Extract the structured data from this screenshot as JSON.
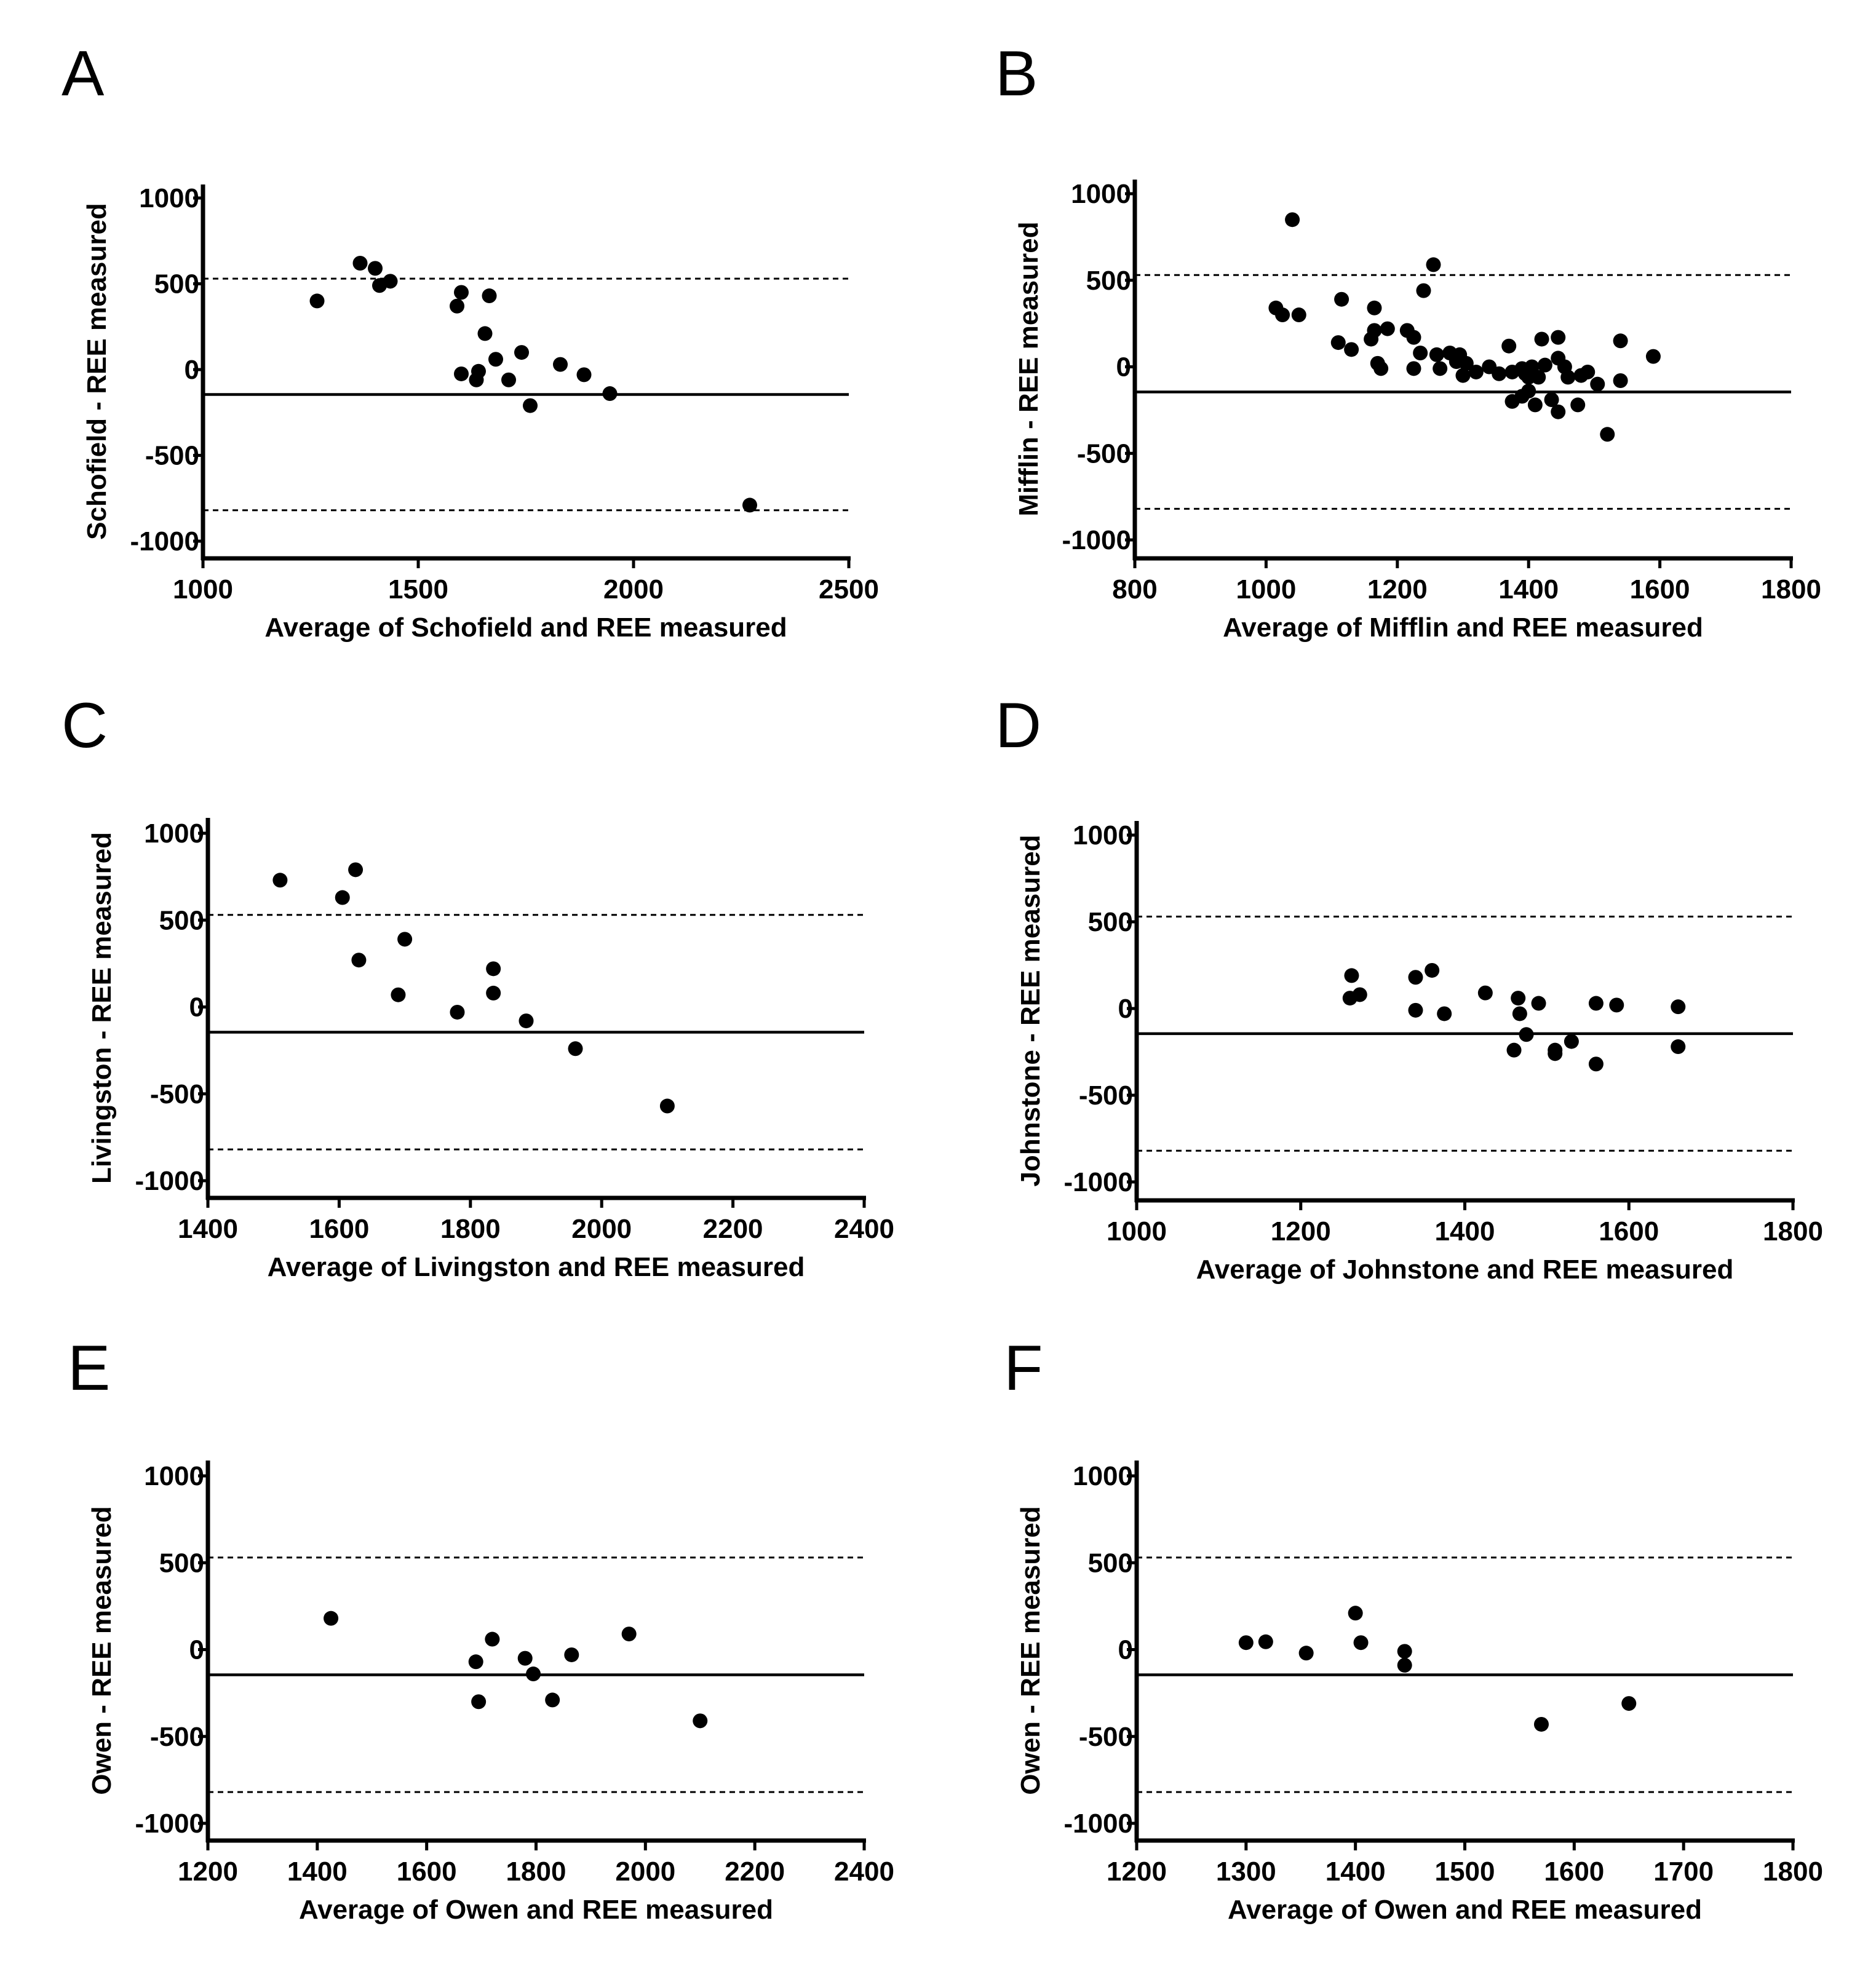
{
  "chart_data": [
    {
      "type": "scatter",
      "panel": "A",
      "xlabel": "Average of Schofield and REE measured",
      "ylabel": "Schofield - REE measured",
      "xlim": [
        1000,
        2500
      ],
      "ylim": [
        -1100,
        1100
      ],
      "xticks": [
        1000,
        1500,
        2000,
        2500
      ],
      "yticks": [
        1000,
        500,
        0,
        -500,
        -1000
      ],
      "mean_line": -145,
      "upper_loa": 530,
      "lower_loa": -820,
      "points": [
        [
          1265,
          400
        ],
        [
          1365,
          620
        ],
        [
          1400,
          590
        ],
        [
          1410,
          490
        ],
        [
          1435,
          515
        ],
        [
          1590,
          370
        ],
        [
          1600,
          450
        ],
        [
          1600,
          -25
        ],
        [
          1635,
          -60
        ],
        [
          1640,
          -10
        ],
        [
          1655,
          210
        ],
        [
          1665,
          430
        ],
        [
          1680,
          60
        ],
        [
          1710,
          -60
        ],
        [
          1740,
          100
        ],
        [
          1760,
          -210
        ],
        [
          1830,
          30
        ],
        [
          1885,
          -30
        ],
        [
          1945,
          -140
        ],
        [
          2270,
          -790
        ]
      ]
    },
    {
      "type": "scatter",
      "panel": "B",
      "xlabel": "Average of Mifflin and REE measured",
      "ylabel": "Mifflin - REE measured",
      "xlim": [
        800,
        1800
      ],
      "ylim": [
        -1100,
        1100
      ],
      "xticks": [
        800,
        1000,
        1200,
        1400,
        1600,
        1800
      ],
      "yticks": [
        1000,
        500,
        0,
        -500,
        -1000
      ],
      "mean_line": -145,
      "upper_loa": 530,
      "lower_loa": -820,
      "points": [
        [
          1040,
          850
        ],
        [
          1255,
          590
        ],
        [
          1240,
          440
        ],
        [
          1015,
          340
        ],
        [
          1025,
          300
        ],
        [
          1050,
          300
        ],
        [
          1115,
          390
        ],
        [
          1165,
          340
        ],
        [
          1110,
          140
        ],
        [
          1130,
          100
        ],
        [
          1160,
          160
        ],
        [
          1165,
          210
        ],
        [
          1185,
          220
        ],
        [
          1215,
          210
        ],
        [
          1225,
          170
        ],
        [
          1170,
          20
        ],
        [
          1175,
          -10
        ],
        [
          1225,
          -10
        ],
        [
          1235,
          80
        ],
        [
          1260,
          70
        ],
        [
          1265,
          -10
        ],
        [
          1280,
          80
        ],
        [
          1290,
          30
        ],
        [
          1295,
          70
        ],
        [
          1305,
          20
        ],
        [
          1300,
          -50
        ],
        [
          1320,
          -30
        ],
        [
          1340,
          0
        ],
        [
          1355,
          -40
        ],
        [
          1375,
          -30
        ],
        [
          1370,
          120
        ],
        [
          1390,
          -10
        ],
        [
          1395,
          -40
        ],
        [
          1405,
          0
        ],
        [
          1415,
          -60
        ],
        [
          1425,
          10
        ],
        [
          1420,
          160
        ],
        [
          1445,
          170
        ],
        [
          1445,
          50
        ],
        [
          1455,
          0
        ],
        [
          1460,
          -60
        ],
        [
          1480,
          -50
        ],
        [
          1490,
          -30
        ],
        [
          1505,
          -100
        ],
        [
          1540,
          150
        ],
        [
          1540,
          -80
        ],
        [
          1590,
          60
        ],
        [
          1375,
          -200
        ],
        [
          1390,
          -170
        ],
        [
          1400,
          -140
        ],
        [
          1410,
          -220
        ],
        [
          1435,
          -190
        ],
        [
          1445,
          -260
        ],
        [
          1475,
          -220
        ],
        [
          1520,
          -390
        ],
        [
          1400,
          -60
        ]
      ]
    },
    {
      "type": "scatter",
      "panel": "C",
      "xlabel": "Average of Livingston and REE measured",
      "ylabel": "Livingston - REE measured",
      "xlim": [
        1400,
        2400
      ],
      "ylim": [
        -1100,
        1100
      ],
      "xticks": [
        1400,
        1600,
        1800,
        2000,
        2200,
        2400
      ],
      "yticks": [
        1000,
        500,
        0,
        -500,
        -1000
      ],
      "mean_line": -145,
      "upper_loa": 530,
      "lower_loa": -820,
      "points": [
        [
          1510,
          730
        ],
        [
          1625,
          790
        ],
        [
          1605,
          630
        ],
        [
          1630,
          270
        ],
        [
          1690,
          70
        ],
        [
          1700,
          390
        ],
        [
          1780,
          -30
        ],
        [
          1835,
          220
        ],
        [
          1835,
          80
        ],
        [
          1885,
          -80
        ],
        [
          1960,
          -240
        ],
        [
          2100,
          -570
        ]
      ]
    },
    {
      "type": "scatter",
      "panel": "D",
      "xlabel": "Average of Johnstone and REE measured",
      "ylabel": "Johnstone - REE measured",
      "xlim": [
        1000,
        1800
      ],
      "ylim": [
        -1100,
        1100
      ],
      "xticks": [
        1000,
        1200,
        1400,
        1600,
        1800
      ],
      "yticks": [
        1000,
        500,
        0,
        -500,
        -1000
      ],
      "mean_line": -145,
      "upper_loa": 530,
      "lower_loa": -820,
      "points": [
        [
          1262,
          190
        ],
        [
          1260,
          60
        ],
        [
          1272,
          80
        ],
        [
          1340,
          180
        ],
        [
          1340,
          -10
        ],
        [
          1360,
          220
        ],
        [
          1375,
          -30
        ],
        [
          1425,
          90
        ],
        [
          1465,
          60
        ],
        [
          1467,
          -30
        ],
        [
          1475,
          -150
        ],
        [
          1460,
          -240
        ],
        [
          1490,
          30
        ],
        [
          1510,
          -240
        ],
        [
          1510,
          -260
        ],
        [
          1530,
          -190
        ],
        [
          1560,
          30
        ],
        [
          1560,
          -320
        ],
        [
          1585,
          20
        ],
        [
          1660,
          10
        ],
        [
          1660,
          -220
        ]
      ]
    },
    {
      "type": "scatter",
      "panel": "E",
      "xlabel": "Average of Owen and REE measured",
      "ylabel": "Owen - REE measured",
      "xlim": [
        1200,
        2400
      ],
      "ylim": [
        -1100,
        1100
      ],
      "xticks": [
        1200,
        1400,
        1600,
        1800,
        2000,
        2200,
        2400
      ],
      "yticks": [
        1000,
        500,
        0,
        -500,
        -1000
      ],
      "mean_line": -145,
      "upper_loa": 530,
      "lower_loa": -820,
      "points": [
        [
          1425,
          180
        ],
        [
          1720,
          60
        ],
        [
          1690,
          -70
        ],
        [
          1695,
          -300
        ],
        [
          1780,
          -50
        ],
        [
          1795,
          -140
        ],
        [
          1830,
          -290
        ],
        [
          1865,
          -30
        ],
        [
          1970,
          90
        ],
        [
          2100,
          -410
        ]
      ]
    },
    {
      "type": "scatter",
      "panel": "F",
      "xlabel": "Average of Owen and REE measured",
      "ylabel": "Owen - REE measured",
      "xlim": [
        1200,
        1800
      ],
      "ylim": [
        -1100,
        1100
      ],
      "xticks": [
        1200,
        1300,
        1400,
        1500,
        1600,
        1700,
        1800
      ],
      "yticks": [
        1000,
        500,
        0,
        -500,
        -1000
      ],
      "mean_line": -145,
      "upper_loa": 530,
      "lower_loa": -820,
      "points": [
        [
          1300,
          40
        ],
        [
          1318,
          45
        ],
        [
          1355,
          -20
        ],
        [
          1400,
          210
        ],
        [
          1405,
          40
        ],
        [
          1445,
          -10
        ],
        [
          1445,
          -90
        ],
        [
          1570,
          -430
        ],
        [
          1650,
          -310
        ]
      ]
    }
  ]
}
